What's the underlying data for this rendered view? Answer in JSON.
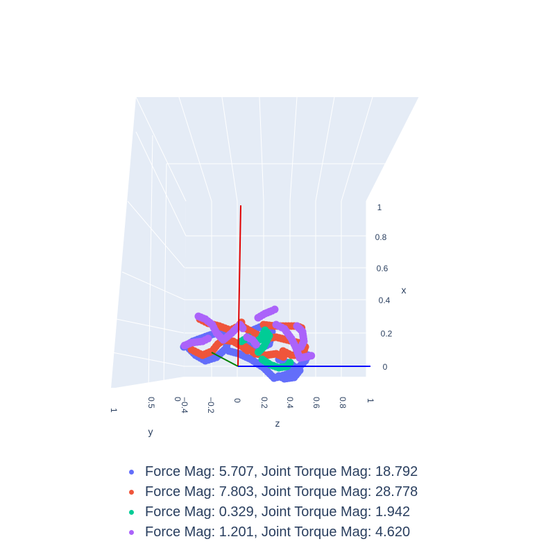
{
  "chart_data": {
    "type": "scatter",
    "title": "",
    "xlabel": "x",
    "ylabel": "y",
    "zlabel": "z",
    "x_ticks": [
      "0",
      "0.2",
      "0.4",
      "0.6",
      "0.8",
      "1"
    ],
    "y_ticks": [
      "1",
      "0.5",
      "0"
    ],
    "z_ticks": [
      "−0.4",
      "−0.2",
      "0",
      "0.2",
      "0.4",
      "0.6",
      "0.8",
      "1"
    ],
    "axis_lines": [
      {
        "name": "x-axis-line",
        "color": "#e00000"
      },
      {
        "name": "y-axis-line",
        "color": "#008000"
      },
      {
        "name": "z-axis-line",
        "color": "#0000ff"
      }
    ],
    "series": [
      {
        "name": "Force Mag: 5.707, Joint Torque Mag: 18.792",
        "color": "#636efa"
      },
      {
        "name": "Force Mag: 7.803, Joint Torque Mag: 28.778",
        "color": "#ef553b"
      },
      {
        "name": "Force Mag: 0.329, Joint Torque Mag: 1.942",
        "color": "#00cc96"
      },
      {
        "name": "Force Mag: 1.201, Joint Torque Mag: 4.620",
        "color": "#ab63fa"
      }
    ],
    "background": "#e5ecf6",
    "grid": true,
    "legend_position": "bottom"
  }
}
